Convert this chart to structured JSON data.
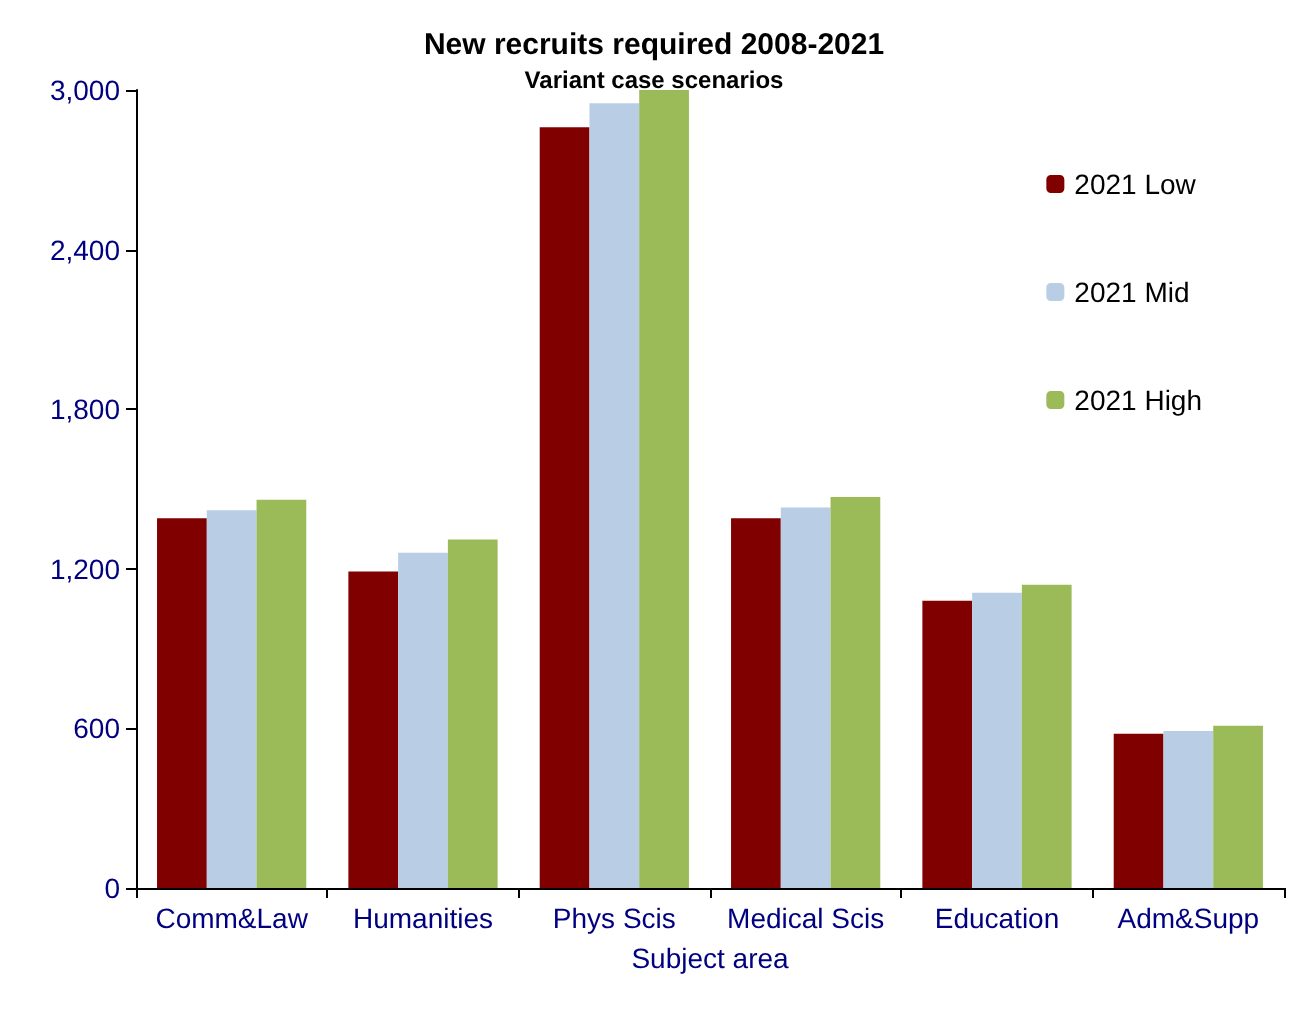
{
  "chart_data": {
    "type": "bar",
    "title": "New recruits required 2008-2021",
    "subtitle": "Variant case scenarios",
    "xlabel": "Subject area",
    "categories": [
      "Comm&Law",
      "Humanities",
      "Phys Scis",
      "Medical Scis",
      "Education",
      "Adm&Supp"
    ],
    "series": [
      {
        "name": "2021 Low",
        "color": "#800000",
        "values": [
          1390,
          1190,
          2860,
          1390,
          1080,
          580
        ]
      },
      {
        "name": "2021 Mid",
        "color": "#b9cde5",
        "values": [
          1420,
          1260,
          2950,
          1430,
          1110,
          590
        ]
      },
      {
        "name": "2021 High",
        "color": "#9bbb59",
        "values": [
          1460,
          1310,
          3000,
          1470,
          1140,
          610
        ]
      }
    ],
    "ylim": [
      0,
      3000
    ],
    "yticks": [
      {
        "value": 0,
        "label": "0"
      },
      {
        "value": 600,
        "label": "600"
      },
      {
        "value": 1200,
        "label": "1,200"
      },
      {
        "value": 1800,
        "label": "1,800"
      },
      {
        "value": 2400,
        "label": "2,400"
      },
      {
        "value": 3000,
        "label": "3,000"
      }
    ],
    "grid": false,
    "legend": "top right"
  }
}
